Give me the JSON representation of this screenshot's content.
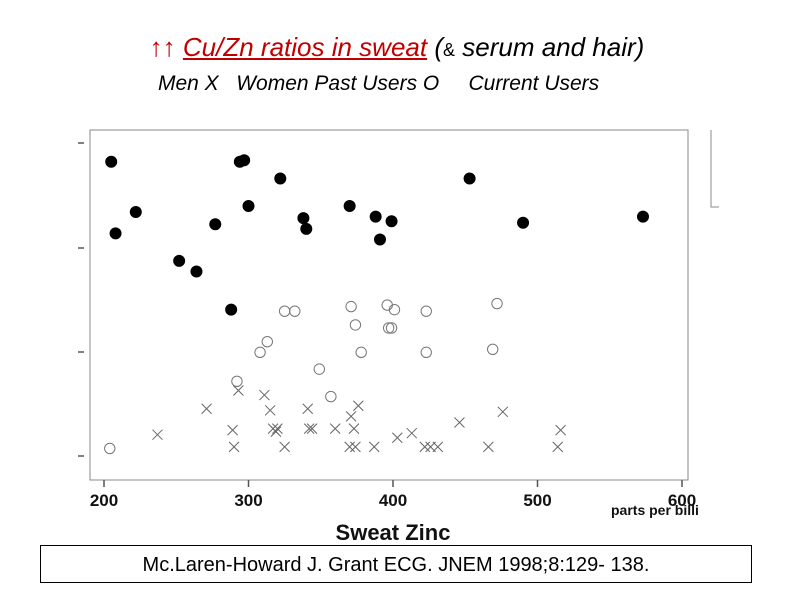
{
  "slide": {
    "title_arrows": "↑↑",
    "title_red": "Cu/Zn ratios in sweat",
    "title_rest_open": " (",
    "title_amp": "&",
    "title_rest": " serum and hair)",
    "legend_men": "Men X",
    "legend_women": "Women Past Users O",
    "legend_current": "Current Users",
    "citation": "Mc.Laren-Howard J. Grant ECG. JNEM 1998;8:129- 138."
  },
  "chart_data": {
    "type": "scatter",
    "xlabel": "Sweat Zinc",
    "x_units_label": "parts per billi",
    "xlim": [
      190,
      590
    ],
    "x_ticks": [
      200,
      300,
      400,
      500,
      600
    ],
    "ylim": [
      0,
      1
    ],
    "grid": false,
    "series": [
      {
        "marker": "filled-circle",
        "points": [
          [
            205,
            0.955
          ],
          [
            208,
            0.72
          ],
          [
            222,
            0.79
          ],
          [
            252,
            0.63
          ],
          [
            264,
            0.595
          ],
          [
            277,
            0.75
          ],
          [
            288,
            0.47
          ],
          [
            294,
            0.955
          ],
          [
            297,
            0.96
          ],
          [
            300,
            0.81
          ],
          [
            322,
            0.9
          ],
          [
            338,
            0.77
          ],
          [
            340,
            0.735
          ],
          [
            370,
            0.81
          ],
          [
            388,
            0.775
          ],
          [
            391,
            0.7
          ],
          [
            399,
            0.76
          ],
          [
            453,
            0.9
          ],
          [
            490,
            0.755
          ],
          [
            573,
            0.775
          ]
        ]
      },
      {
        "marker": "open-circle",
        "points": [
          [
            204,
            0.015
          ],
          [
            292,
            0.235
          ],
          [
            308,
            0.33
          ],
          [
            313,
            0.365
          ],
          [
            325,
            0.465
          ],
          [
            332,
            0.465
          ],
          [
            349,
            0.275
          ],
          [
            357,
            0.185
          ],
          [
            371,
            0.48
          ],
          [
            374,
            0.42
          ],
          [
            378,
            0.33
          ],
          [
            396,
            0.485
          ],
          [
            397,
            0.41
          ],
          [
            399,
            0.41
          ],
          [
            401,
            0.47
          ],
          [
            423,
            0.465
          ],
          [
            423,
            0.33
          ],
          [
            469,
            0.34
          ],
          [
            472,
            0.49
          ]
        ]
      },
      {
        "marker": "x",
        "points": [
          [
            237,
            0.06
          ],
          [
            271,
            0.145
          ],
          [
            289,
            0.075
          ],
          [
            290,
            0.02
          ],
          [
            293,
            0.205
          ],
          [
            311,
            0.19
          ],
          [
            315,
            0.14
          ],
          [
            317,
            0.08
          ],
          [
            319,
            0.07
          ],
          [
            325,
            0.02
          ],
          [
            320,
            0.08
          ],
          [
            341,
            0.145
          ],
          [
            342,
            0.08
          ],
          [
            344,
            0.08
          ],
          [
            360,
            0.08
          ],
          [
            370,
            0.02
          ],
          [
            371,
            0.12
          ],
          [
            373,
            0.08
          ],
          [
            374,
            0.02
          ],
          [
            376,
            0.155
          ],
          [
            387,
            0.02
          ],
          [
            403,
            0.05
          ],
          [
            413,
            0.065
          ],
          [
            422,
            0.02
          ],
          [
            426,
            0.02
          ],
          [
            431,
            0.02
          ],
          [
            446,
            0.1
          ],
          [
            466,
            0.02
          ],
          [
            476,
            0.135
          ],
          [
            514,
            0.02
          ],
          [
            516,
            0.075
          ]
        ]
      }
    ]
  }
}
